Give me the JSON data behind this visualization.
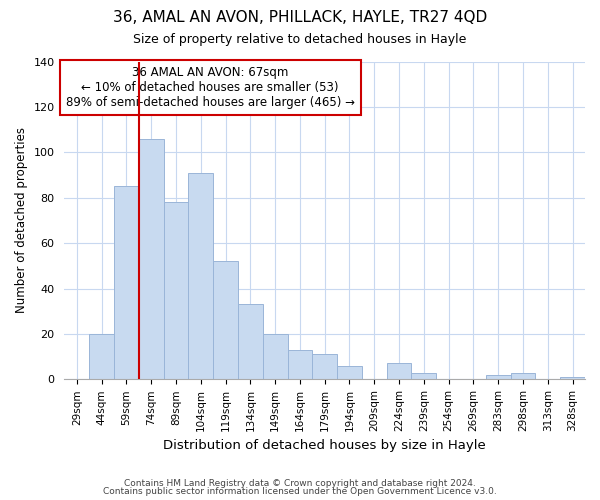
{
  "title": "36, AMAL AN AVON, PHILLACK, HAYLE, TR27 4QD",
  "subtitle": "Size of property relative to detached houses in Hayle",
  "xlabel": "Distribution of detached houses by size in Hayle",
  "ylabel": "Number of detached properties",
  "bar_color": "#c8daf0",
  "bar_edge_color": "#9ab5d8",
  "categories": [
    "29sqm",
    "44sqm",
    "59sqm",
    "74sqm",
    "89sqm",
    "104sqm",
    "119sqm",
    "134sqm",
    "149sqm",
    "164sqm",
    "179sqm",
    "194sqm",
    "209sqm",
    "224sqm",
    "239sqm",
    "254sqm",
    "269sqm",
    "283sqm",
    "298sqm",
    "313sqm",
    "328sqm"
  ],
  "values": [
    0,
    20,
    85,
    106,
    78,
    91,
    52,
    33,
    20,
    13,
    11,
    6,
    0,
    7,
    3,
    0,
    0,
    2,
    3,
    0,
    1
  ],
  "ylim": [
    0,
    140
  ],
  "yticks": [
    0,
    20,
    40,
    60,
    80,
    100,
    120,
    140
  ],
  "marker_color": "#cc0000",
  "annotation_title": "36 AMAL AN AVON: 67sqm",
  "annotation_line1": "← 10% of detached houses are smaller (53)",
  "annotation_line2": "89% of semi-detached houses are larger (465) →",
  "annotation_box_color": "#ffffff",
  "annotation_box_edgecolor": "#cc0000",
  "footer1": "Contains HM Land Registry data © Crown copyright and database right 2024.",
  "footer2": "Contains public sector information licensed under the Open Government Licence v3.0.",
  "background_color": "#ffffff",
  "grid_color": "#c8d8f0"
}
